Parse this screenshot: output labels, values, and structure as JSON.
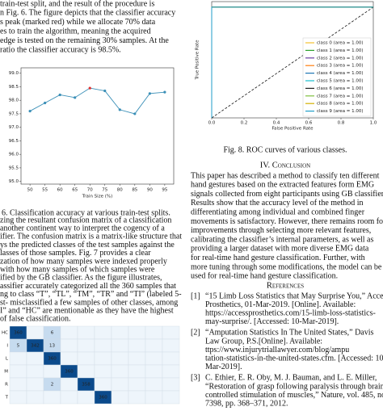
{
  "intro_lines": [
    "train-test split, and the result of the procedure is",
    "n Fig. 6. The figure depicts that the classifier accuracy",
    "s peak (marked red) while we allocate 70% data",
    "es to train the algorithm, meaning the acquired",
    "edge is tested on the remaining 30% samples. At the",
    "ratio the classifier accuracy is 98.5%."
  ],
  "fig6": {
    "chart_data": {
      "type": "line",
      "xlabel": "Train Size (%)",
      "x": [
        50,
        55,
        60,
        65,
        70,
        75,
        80,
        85,
        90,
        95
      ],
      "values": [
        97.6,
        97.9,
        98.2,
        98.1,
        98.45,
        98.35,
        97.65,
        97.5,
        98.25,
        98.3
      ],
      "color": "#3a8fb7",
      "point_colors": [
        "#3a8fb7",
        "#3a8fb7",
        "#3a8fb7",
        "#3a8fb7",
        "#e03030",
        "#3a8fb7",
        "#3a8fb7",
        "#3a8fb7",
        "#3a8fb7",
        "#3a8fb7"
      ],
      "xlim": [
        47,
        98
      ],
      "ylim": [
        94.9,
        99.2
      ],
      "xticks": [
        50,
        55,
        60,
        65,
        70,
        75,
        80,
        85,
        90,
        95
      ],
      "yticks": [
        {
          "value": 95,
          "label": "95.0"
        },
        95.5,
        {
          "value": 96,
          "label": "96.0"
        },
        96.5,
        {
          "value": 97,
          "label": "97.0"
        },
        97.5,
        {
          "value": 98,
          "label": "98.0"
        },
        98.5,
        {
          "value": 99,
          "label": "99.0"
        }
      ],
      "grid": false
    }
  },
  "fig6_caption": "6.  Classification accuracy at various train-test splits.",
  "paragraph_lines": [
    "zing the resultant confusion matrix of a classification",
    "another continent way to interpret the cogency of a",
    "ifier. The confusion matrix is a matrix-like structure that",
    "ys the predicted classes of the test samples against the",
    "lasses of those samples. Fig. 7 provides a clear",
    "zation of how many samples were indexed properly",
    "with how many samples of which samples were",
    "ified by the GB classifier. As the figure illustrates,",
    "assifier accurately categorized all the 360 samples that",
    "ng to class “T”, “TL”, “TM”, “TR” and “TI” (labeled 5-",
    "st- misclassified a few samples of other classes, among",
    "I” and “HC” are mentionable as they have the highest",
    "of false classification."
  ],
  "fig7": {
    "rows": [
      {
        "label": "HC",
        "cells": [
          360,
          null,
          6,
          null,
          null,
          null,
          null,
          null,
          null,
          null
        ]
      },
      {
        "label": "I",
        "cells": [
          5,
          342,
          13,
          null,
          null,
          null,
          null,
          null,
          null,
          null
        ]
      },
      {
        "label": "L",
        "cells": [
          null,
          null,
          360,
          null,
          null,
          null,
          null,
          null,
          null,
          null
        ]
      },
      {
        "label": "M",
        "cells": [
          null,
          null,
          null,
          360,
          null,
          null,
          null,
          null,
          null,
          null
        ]
      },
      {
        "label": "R",
        "cells": [
          null,
          null,
          2,
          null,
          358,
          null,
          null,
          null,
          null,
          null
        ]
      },
      {
        "label": "T",
        "cells": [
          null,
          null,
          null,
          null,
          null,
          360,
          null,
          null,
          null,
          null
        ]
      }
    ]
  },
  "fig8": {
    "chart_data": {
      "type": "roc",
      "xlabel": "False Positive Rate",
      "ylabel": "True Positive Rate",
      "xlim": [
        0,
        1
      ],
      "ylim": [
        0,
        1.05
      ],
      "xticks": [
        {
          "value": 0,
          "label": "0.0"
        },
        0.2,
        0.4,
        0.6,
        0.8,
        {
          "value": 1,
          "label": "1.0"
        }
      ],
      "legend": "lower right",
      "series": [
        {
          "name": "class 0 (area = 1.00)",
          "color": "#f2c12e",
          "x": [
            0,
            0,
            1
          ],
          "values": [
            0,
            1,
            1
          ]
        },
        {
          "name": "class 1 (area = 1.00)",
          "color": "#2ca02c",
          "x": [
            0,
            0,
            1
          ],
          "values": [
            0,
            1,
            1
          ]
        },
        {
          "name": "class 2 (area = 1.00)",
          "color": "#6b3fa0",
          "x": [
            0,
            0,
            1
          ],
          "values": [
            0,
            1,
            1
          ]
        },
        {
          "name": "class 3 (area = 1.00)",
          "color": "#ff7f0e",
          "x": [
            0,
            0,
            1
          ],
          "values": [
            0,
            1,
            1
          ]
        },
        {
          "name": "class 4 (area = 1.00)",
          "color": "#1f77b4",
          "x": [
            0,
            0,
            1
          ],
          "values": [
            0,
            1,
            1
          ]
        },
        {
          "name": "class 5 (area = 1.00)",
          "color": "#17becf",
          "x": [
            0,
            0,
            1
          ],
          "values": [
            0,
            1,
            1
          ]
        },
        {
          "name": "class 6 (area = 1.00)",
          "color": "#222222",
          "x": [
            0,
            0,
            1
          ],
          "values": [
            0,
            1,
            1
          ]
        },
        {
          "name": "class 7 (area = 1.00)",
          "color": "#7fbf3f",
          "x": [
            0,
            0,
            1
          ],
          "values": [
            0,
            1,
            1
          ]
        },
        {
          "name": "class 8 (area = 1.00)",
          "color": "#d4b000",
          "x": [
            0,
            0,
            1
          ],
          "values": [
            0,
            1,
            1
          ]
        },
        {
          "name": "class 9 (area = 1.00)",
          "color": "#1f9ec9",
          "x": [
            0,
            0,
            1
          ],
          "values": [
            0,
            1,
            1
          ]
        }
      ]
    }
  },
  "fig8_caption": "Fig. 8.  ROC curves of various classes.",
  "conclusion_heading": "IV.  Conclusion",
  "conclusion_lines": [
    "This paper has described a method to classify ten different",
    "hand gestures based on the extracted features form EMG",
    "signals collected from eight participants using GB classifier.",
    "Results show that the accuracy level of the method in",
    "differentiating among individual and combined finger",
    "movements is satisfactory. However, there remains room for",
    "improvements through selecting more relevant features,",
    "calibrating the classifier’s internal parameters, as well as",
    "providing a larger dataset with more diverse EMG data",
    "for real-time hand gesture classification. Further, with",
    "more tuning through some modifications, the model can be",
    "used for real-time hand gesture classification."
  ],
  "references_heading": "References",
  "references": [
    {
      "number": "[1]",
      "lines": [
        "“15 Limb Loss Statistics that May Surprise You,” Access",
        "Prosthetics, 01-Mar-2019. [Online]. Available:",
        "https://accessprosthetics.com/15-limb-loss-statistics-",
        "may-surprise/. [Accessed: 10-Mar-2019]."
      ]
    },
    {
      "number": "[2]",
      "lines": [
        "“Amputation Statistics In The United States,” Davis",
        "Law Group, P.S.[Online]. Available:",
        "ttps://www.injurytriallawyer.com/blog/ampu",
        "tation-statistics-in-the-united-states.cfm. [Accessed: 10-",
        "Mar-2019]."
      ]
    },
    {
      "number": "[3]",
      "lines": [
        "C. Ethier, E. R. Oby, M. J. Bauman, and L. E. Miller,",
        "“Restoration of grasp following paralysis through brain-",
        "controlled stimulation of muscles,” Nature, vol. 485, no.",
        "7398, pp. 368–371, 2012."
      ]
    }
  ]
}
